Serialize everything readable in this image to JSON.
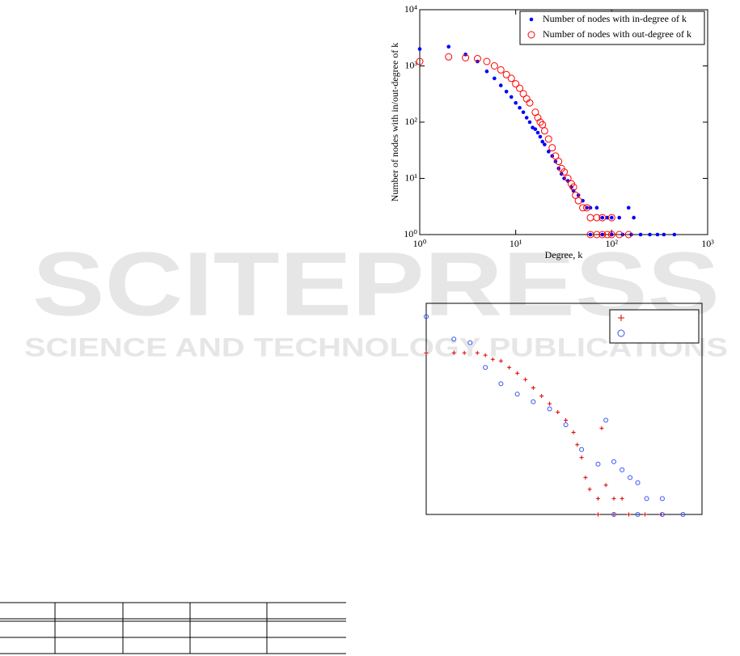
{
  "watermark": {
    "title": "SCITEPRESS",
    "subtitle": "SCIENCE AND TECHNOLOGY PUBLICATIONS"
  },
  "chart_data": [
    {
      "type": "scatter",
      "log_x": true,
      "log_y": true,
      "legend": "upper right",
      "xlabel": "Degree, k",
      "ylabel": "Number of nodes with in/out-degree of k",
      "xlim": [
        1,
        1000
      ],
      "ylim": [
        1,
        10000
      ],
      "xticks": [
        {
          "value": 1,
          "label": "10⁰"
        },
        {
          "value": 10,
          "label": "10¹"
        },
        {
          "value": 100,
          "label": "10²"
        },
        {
          "value": 1000,
          "label": "10³"
        }
      ],
      "yticks": [
        {
          "value": 1,
          "label": "10⁰"
        },
        {
          "value": 10,
          "label": "10¹"
        },
        {
          "value": 100,
          "label": "10²"
        },
        {
          "value": 1000,
          "label": "10³"
        },
        {
          "value": 10000,
          "label": "10⁴"
        }
      ],
      "series": [
        {
          "name": "Number of nodes with in-degree of k",
          "color": "#0000ff",
          "marker": "dot",
          "x": [
            1,
            2,
            3,
            4,
            5,
            6,
            7,
            8,
            9,
            10,
            11,
            12,
            13,
            14,
            15,
            16,
            17,
            18,
            19,
            20,
            22,
            24,
            26,
            28,
            30,
            32,
            35,
            38,
            40,
            45,
            50,
            55,
            60,
            70,
            80,
            90,
            100,
            120,
            150,
            170,
            60,
            80,
            100,
            130,
            160,
            200,
            250,
            300,
            350,
            450
          ],
          "values": [
            2000,
            2200,
            1600,
            1200,
            800,
            600,
            450,
            350,
            280,
            220,
            180,
            150,
            120,
            100,
            80,
            75,
            65,
            55,
            45,
            40,
            30,
            25,
            20,
            15,
            12,
            10,
            9,
            7,
            6,
            5,
            4,
            3,
            3,
            3,
            2,
            2,
            2,
            2,
            3,
            2,
            1,
            1,
            1,
            1,
            1,
            1,
            1,
            1,
            1,
            1
          ]
        },
        {
          "name": "Number of nodes with out-degree of k",
          "color": "#ff0000",
          "marker": "circle",
          "x": [
            1,
            2,
            3,
            4,
            5,
            6,
            7,
            8,
            9,
            10,
            11,
            12,
            13,
            14,
            16,
            17,
            18,
            19,
            20,
            22,
            24,
            26,
            28,
            30,
            32,
            35,
            38,
            40,
            42,
            45,
            50,
            55,
            60,
            70,
            80,
            100,
            60,
            70,
            80,
            90,
            100,
            120,
            150
          ],
          "values": [
            1200,
            1450,
            1400,
            1350,
            1200,
            1000,
            850,
            700,
            600,
            480,
            400,
            320,
            260,
            220,
            150,
            120,
            100,
            90,
            70,
            50,
            35,
            25,
            20,
            15,
            13,
            10,
            8,
            7,
            5,
            4,
            3,
            3,
            2,
            2,
            2,
            2,
            1,
            1,
            1,
            1,
            1,
            1,
            1
          ]
        }
      ]
    },
    {
      "type": "scatter",
      "log_x": true,
      "log_y": true,
      "legend": "upper right",
      "xlim": [
        1,
        1000
      ],
      "ylim": [
        1,
        10000
      ],
      "series": [
        {
          "color": "#dd0000",
          "marker": "plus",
          "x": [
            1,
            2,
            2.6,
            3.6,
            4.4,
            5.3,
            6.5,
            8,
            9.8,
            12,
            14.6,
            18,
            22,
            27,
            33,
            40,
            44,
            49,
            54,
            60,
            74,
            81,
            90,
            110,
            135,
            74,
            110,
            160,
            240,
            360
          ],
          "values": [
            1150,
            1150,
            1150,
            1150,
            1040,
            870,
            810,
            610,
            475,
            360,
            250,
            175,
            125,
            87,
            61,
            36,
            21,
            12,
            5,
            3,
            2,
            43,
            3.6,
            2,
            2,
            1,
            1,
            1,
            1,
            1
          ]
        },
        {
          "color": "#3355ee",
          "marker": "circle",
          "x": [
            1,
            2,
            3,
            4.4,
            6.5,
            9.8,
            14.6,
            22,
            33,
            49,
            74,
            90,
            110,
            135,
            165,
            200,
            250,
            370,
            110,
            200,
            370,
            620
          ],
          "values": [
            5600,
            2100,
            1800,
            610,
            300,
            190,
            137,
            100,
            50,
            17,
            9,
            61,
            10,
            7,
            5,
            4,
            2,
            2,
            1,
            1,
            1,
            1
          ]
        }
      ]
    }
  ]
}
